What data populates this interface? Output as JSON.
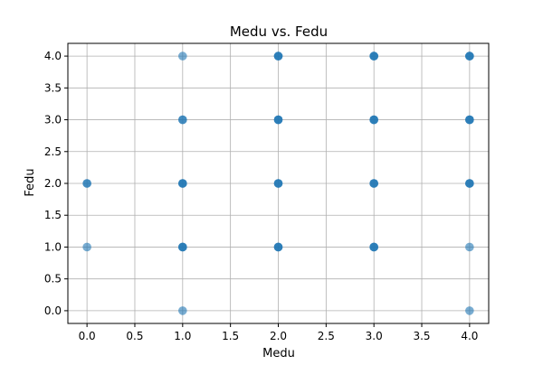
{
  "chart_data": {
    "type": "scatter",
    "title": "Medu vs. Fedu",
    "xlabel": "Medu",
    "ylabel": "Fedu",
    "xlim": [
      -0.2,
      4.2
    ],
    "ylim": [
      -0.2,
      4.2
    ],
    "xticks": [
      0.0,
      0.5,
      1.0,
      1.5,
      2.0,
      2.5,
      3.0,
      3.5,
      4.0
    ],
    "yticks": [
      0.0,
      0.5,
      1.0,
      1.5,
      2.0,
      2.5,
      3.0,
      3.5,
      4.0
    ],
    "xtick_labels": [
      "0.0",
      "0.5",
      "1.0",
      "1.5",
      "2.0",
      "2.5",
      "3.0",
      "3.5",
      "4.0"
    ],
    "ytick_labels": [
      "0.0",
      "0.5",
      "1.0",
      "1.5",
      "2.0",
      "2.5",
      "3.0",
      "3.5",
      "4.0"
    ],
    "grid": true,
    "marker_color": "#1f77b4",
    "points": [
      {
        "x": 0,
        "y": 1,
        "weight": 1
      },
      {
        "x": 0,
        "y": 2,
        "weight": 2
      },
      {
        "x": 1,
        "y": 0,
        "weight": 1
      },
      {
        "x": 1,
        "y": 1,
        "weight": 3
      },
      {
        "x": 1,
        "y": 2,
        "weight": 3
      },
      {
        "x": 1,
        "y": 3,
        "weight": 2
      },
      {
        "x": 1,
        "y": 4,
        "weight": 1
      },
      {
        "x": 2,
        "y": 1,
        "weight": 3
      },
      {
        "x": 2,
        "y": 2,
        "weight": 3
      },
      {
        "x": 2,
        "y": 3,
        "weight": 3
      },
      {
        "x": 2,
        "y": 4,
        "weight": 3
      },
      {
        "x": 3,
        "y": 1,
        "weight": 3
      },
      {
        "x": 3,
        "y": 2,
        "weight": 3
      },
      {
        "x": 3,
        "y": 3,
        "weight": 3
      },
      {
        "x": 3,
        "y": 4,
        "weight": 3
      },
      {
        "x": 4,
        "y": 0,
        "weight": 1
      },
      {
        "x": 4,
        "y": 1,
        "weight": 1
      },
      {
        "x": 4,
        "y": 2,
        "weight": 3
      },
      {
        "x": 4,
        "y": 3,
        "weight": 3
      },
      {
        "x": 4,
        "y": 4,
        "weight": 3
      }
    ]
  }
}
